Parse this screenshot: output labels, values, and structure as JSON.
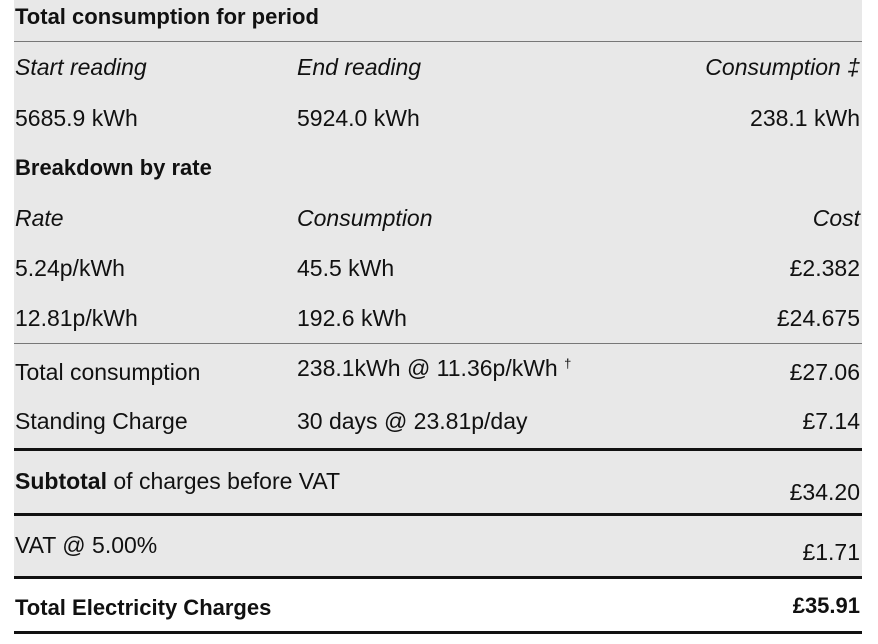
{
  "total_section": {
    "title": "Total consumption for period",
    "headers": {
      "start": "Start reading",
      "end": "End reading",
      "consumption": "Consumption ‡"
    },
    "values": {
      "start": "5685.9 kWh",
      "end": "5924.0 kWh",
      "consumption": "238.1 kWh"
    }
  },
  "breakdown": {
    "title": "Breakdown by rate",
    "headers": {
      "rate": "Rate",
      "consumption": "Consumption",
      "cost": "Cost"
    },
    "rows": [
      {
        "rate": "5.24p/kWh",
        "consumption": "45.5 kWh",
        "cost": "£2.382"
      },
      {
        "rate": "12.81p/kWh",
        "consumption": "192.6 kWh",
        "cost": "£24.675"
      }
    ]
  },
  "summary": {
    "total_consumption": {
      "label": "Total consumption",
      "detail": "238.1kWh @ 11.36p/kWh",
      "mark": "†",
      "cost": "£27.06"
    },
    "standing_charge": {
      "label": "Standing Charge",
      "detail": "30 days @ 23.81p/day",
      "cost": "£7.14"
    }
  },
  "subtotal": {
    "label_bold": "Subtotal",
    "label_rest": " of charges before VAT",
    "amount": "£34.20"
  },
  "vat": {
    "label": "VAT @ 5.00%",
    "amount": "£1.71"
  },
  "grand_total": {
    "label": "Total Electricity Charges",
    "amount": "£35.91"
  }
}
